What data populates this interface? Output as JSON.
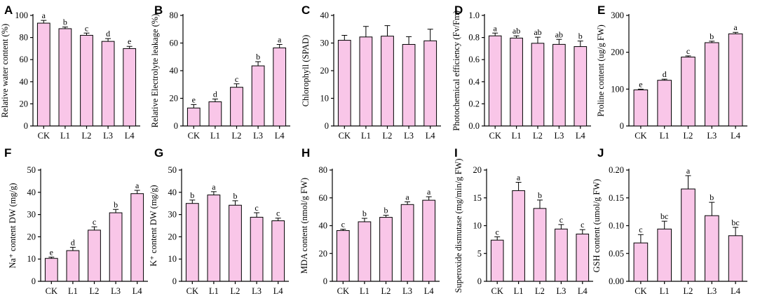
{
  "chart_data": [
    {
      "panel": "A",
      "type": "bar",
      "categories": [
        "CK",
        "L1",
        "L2",
        "L3",
        "L4"
      ],
      "values": [
        93,
        88,
        82,
        76.5,
        70
      ],
      "errors": [
        2.5,
        1.5,
        2,
        2.5,
        2
      ],
      "sig": [
        "a",
        "b",
        "c",
        "d",
        "e"
      ],
      "ylabel": "Relative water content (%)",
      "ylim": [
        0,
        100
      ],
      "yticks": [
        0,
        20,
        40,
        60,
        80,
        100
      ],
      "ytick_labels": [
        "0",
        "20",
        "40",
        "60",
        "80",
        "100"
      ]
    },
    {
      "panel": "B",
      "type": "bar",
      "categories": [
        "CK",
        "L1",
        "L2",
        "L3",
        "L4"
      ],
      "values": [
        13,
        17.5,
        28,
        43.5,
        56.5
      ],
      "errors": [
        2.5,
        2,
        2.5,
        3,
        2.5
      ],
      "sig": [
        "e",
        "d",
        "c",
        "b",
        "a"
      ],
      "ylabel": "Relative Electrolyte leakage (%)",
      "ylim": [
        0,
        80
      ],
      "yticks": [
        0,
        20,
        40,
        60,
        80
      ],
      "ytick_labels": [
        "0",
        "20",
        "40",
        "60",
        "80"
      ]
    },
    {
      "panel": "C",
      "type": "bar",
      "categories": [
        "CK",
        "L1",
        "L2",
        "L3",
        "L4"
      ],
      "values": [
        31,
        32.2,
        32.5,
        29.5,
        30.8
      ],
      "errors": [
        1.8,
        3.8,
        3.8,
        2.8,
        4.2
      ],
      "sig": [
        "",
        "",
        "",
        "",
        ""
      ],
      "ylabel": "Chlorophyll (SPAD)",
      "ylim": [
        0,
        40
      ],
      "yticks": [
        0,
        10,
        20,
        30,
        40
      ],
      "ytick_labels": [
        "0",
        "10",
        "20",
        "30",
        "40"
      ]
    },
    {
      "panel": "D",
      "type": "bar",
      "categories": [
        "CK",
        "L1",
        "L2",
        "L3",
        "L4"
      ],
      "values": [
        0.815,
        0.795,
        0.748,
        0.738,
        0.718
      ],
      "errors": [
        0.025,
        0.02,
        0.055,
        0.045,
        0.05
      ],
      "sig": [
        "a",
        "ab",
        "ab",
        "ab",
        "b"
      ],
      "ylabel": "Photochemical efficiency (Fv/Fm)",
      "ylim": [
        0,
        1.0
      ],
      "yticks": [
        0,
        0.2,
        0.4,
        0.6,
        0.8,
        1.0
      ],
      "ytick_labels": [
        "0.0",
        "0.2",
        "0.4",
        "0.6",
        "0.8",
        "1.0"
      ]
    },
    {
      "panel": "E",
      "type": "bar",
      "categories": [
        "CK",
        "L1",
        "L2",
        "L3",
        "L4"
      ],
      "values": [
        98,
        124,
        187,
        226,
        250
      ],
      "errors": [
        2,
        3,
        3,
        4,
        4
      ],
      "sig": [
        "e",
        "d",
        "c",
        "b",
        "a"
      ],
      "ylabel": "Proline content (ug/g FW)",
      "ylim": [
        0,
        300
      ],
      "yticks": [
        0,
        100,
        200,
        300
      ],
      "ytick_labels": [
        "0",
        "100",
        "200",
        "300"
      ]
    },
    {
      "panel": "F",
      "type": "bar",
      "categories": [
        "CK",
        "L1",
        "L2",
        "L3",
        "L4"
      ],
      "values": [
        10.3,
        13.8,
        23,
        30.8,
        39.4
      ],
      "errors": [
        0.6,
        1.5,
        1.5,
        1.5,
        1.5
      ],
      "sig": [
        "e",
        "d",
        "c",
        "b",
        "a"
      ],
      "ylabel": "Na⁺ content DW (mg/g)",
      "ylim": [
        0,
        50
      ],
      "yticks": [
        0,
        10,
        20,
        30,
        40,
        50
      ],
      "ytick_labels": [
        "0",
        "10",
        "20",
        "30",
        "40",
        "50"
      ]
    },
    {
      "panel": "G",
      "type": "bar",
      "categories": [
        "CK",
        "L1",
        "L2",
        "L3",
        "L4"
      ],
      "values": [
        35,
        38.8,
        34.2,
        28.8,
        27.2
      ],
      "errors": [
        1.5,
        1.5,
        2,
        2,
        1.2
      ],
      "sig": [
        "b",
        "a",
        "b",
        "c",
        "c"
      ],
      "ylabel": "K⁺ content DW (mg/g)",
      "ylim": [
        0,
        50
      ],
      "yticks": [
        0,
        10,
        20,
        30,
        40,
        50
      ],
      "ytick_labels": [
        "0",
        "10",
        "20",
        "30",
        "40",
        "50"
      ]
    },
    {
      "panel": "H",
      "type": "bar",
      "categories": [
        "CK",
        "L1",
        "L2",
        "L3",
        "L4"
      ],
      "values": [
        36.5,
        42.8,
        46,
        55.2,
        58.3
      ],
      "errors": [
        1,
        2.5,
        1.5,
        2,
        2.5
      ],
      "sig": [
        "c",
        "b",
        "b",
        "a",
        "a"
      ],
      "ylabel": "MDA content (nmol/g FW)",
      "ylim": [
        0,
        80
      ],
      "yticks": [
        0,
        20,
        40,
        60,
        80
      ],
      "ytick_labels": [
        "0",
        "20",
        "40",
        "60",
        "80"
      ]
    },
    {
      "panel": "I",
      "type": "bar",
      "categories": [
        "CK",
        "L1",
        "L2",
        "L3",
        "L4"
      ],
      "values": [
        7.4,
        16.3,
        13.1,
        9.4,
        8.5
      ],
      "errors": [
        0.6,
        1.5,
        1.5,
        0.8,
        0.8
      ],
      "sig": [
        "c",
        "a",
        "b",
        "c",
        "c"
      ],
      "ylabel": "Superoxide dismutase (mg/min/g FW)",
      "ylim": [
        0,
        20
      ],
      "yticks": [
        0,
        5,
        10,
        15,
        20
      ],
      "ytick_labels": [
        "0",
        "5",
        "10",
        "15",
        "20"
      ]
    },
    {
      "panel": "J",
      "type": "bar",
      "categories": [
        "CK",
        "L1",
        "L2",
        "L3",
        "L4"
      ],
      "values": [
        0.069,
        0.094,
        0.166,
        0.118,
        0.082
      ],
      "errors": [
        0.015,
        0.014,
        0.024,
        0.024,
        0.015
      ],
      "sig": [
        "c",
        "bc",
        "a",
        "b",
        "bc"
      ],
      "ylabel": "GSH content (umol/g FW)",
      "ylim": [
        0,
        0.2
      ],
      "yticks": [
        0,
        0.05,
        0.1,
        0.15,
        0.2
      ],
      "ytick_labels": [
        "0.00",
        "0.05",
        "0.10",
        "0.15",
        "0.20"
      ]
    }
  ]
}
